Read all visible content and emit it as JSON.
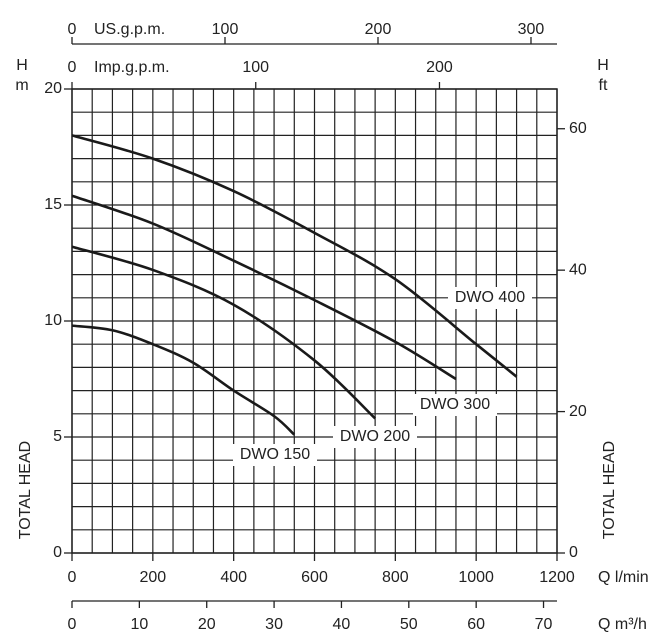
{
  "chart_data": {
    "type": "line",
    "x_label": "Q l/min",
    "y_label": "TOTAL HEAD",
    "y_unit_labels": [
      "H",
      "m"
    ],
    "y2_unit_labels": [
      "H",
      "ft"
    ],
    "xlim": [
      0,
      1200
    ],
    "xticks": [
      0,
      200,
      400,
      600,
      800,
      1000,
      1200
    ],
    "ylim": [
      0,
      20
    ],
    "yticks": [
      0,
      5,
      10,
      15,
      20
    ],
    "y2lim": [
      0,
      65.62
    ],
    "y2ticks": [
      0,
      20,
      40,
      60
    ],
    "minor_xticks": [
      0,
      50,
      100,
      150,
      200,
      250,
      300,
      350,
      400,
      450,
      500,
      550,
      600,
      650,
      700,
      750,
      800,
      850,
      900,
      950,
      1000,
      1050,
      1100,
      1150,
      1200
    ],
    "minor_yticks": [
      0,
      1,
      2,
      3,
      4,
      5,
      6,
      7,
      8,
      9,
      10,
      11,
      12,
      13,
      14,
      15,
      16,
      17,
      18,
      19,
      20
    ],
    "top_axes": [
      {
        "label": "US.g.p.m.",
        "lim": [
          0,
          317.0
        ],
        "ticks": [
          0,
          100,
          200,
          300
        ]
      },
      {
        "label": "Imp.g.p.m.",
        "lim": [
          0,
          263.96
        ],
        "ticks": [
          0,
          100,
          200
        ]
      }
    ],
    "bottom_axis2": {
      "label": "Q m³/h",
      "lim": [
        0,
        72
      ],
      "ticks": [
        0,
        10,
        20,
        30,
        40,
        50,
        60,
        70
      ]
    },
    "grid": true,
    "series": [
      {
        "name": "DWO 400",
        "color": "#1a1a1a",
        "x": [
          0,
          200,
          400,
          600,
          800,
          1000,
          1100
        ],
        "values": [
          18.0,
          17.0,
          15.6,
          13.8,
          11.8,
          9.0,
          7.6
        ]
      },
      {
        "name": "DWO 300",
        "color": "#1a1a1a",
        "x": [
          0,
          200,
          400,
          600,
          800,
          950
        ],
        "values": [
          15.4,
          14.2,
          12.6,
          10.9,
          9.1,
          7.5
        ]
      },
      {
        "name": "DWO 200",
        "color": "#1a1a1a",
        "x": [
          0,
          200,
          400,
          600,
          750
        ],
        "values": [
          13.2,
          12.2,
          10.7,
          8.3,
          5.8
        ]
      },
      {
        "name": "DWO 150",
        "color": "#1a1a1a",
        "x": [
          0,
          100,
          200,
          300,
          400,
          500,
          550
        ],
        "values": [
          9.8,
          9.6,
          9.0,
          8.2,
          7.0,
          5.9,
          5.1
        ]
      }
    ]
  }
}
